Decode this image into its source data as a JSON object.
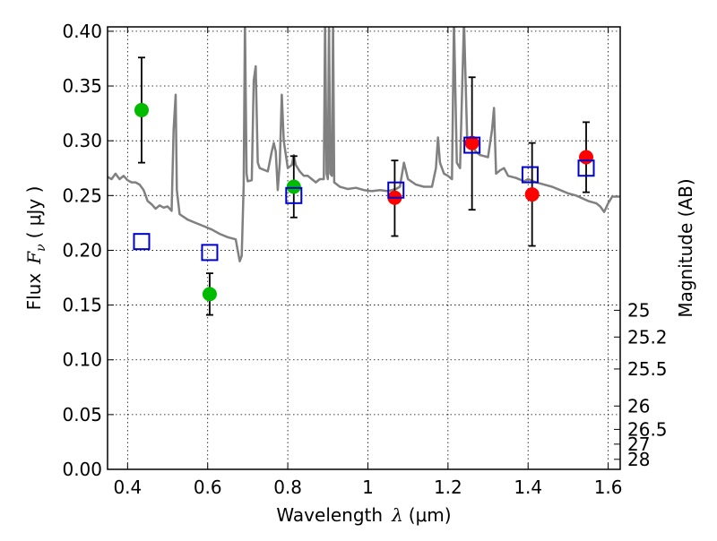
{
  "chart_data": {
    "type": "scatter",
    "title": "",
    "xlabel": "Wavelength",
    "xlabel_symbol": "λ",
    "xlabel_unit": "(μm)",
    "ylabel": "Flux",
    "ylabel_symbol": "F",
    "ylabel_symbol_sub": "ν",
    "ylabel_unit": "( μJy )",
    "ylabel_right": "Magnitude (AB)",
    "xlim": [
      0.35,
      1.63
    ],
    "ylim": [
      0.0,
      0.404
    ],
    "grid": true,
    "x_ticks": [
      {
        "value": 0.4,
        "label": "0.4"
      },
      {
        "value": 0.6,
        "label": "0.6"
      },
      {
        "value": 0.8,
        "label": "0.8"
      },
      {
        "value": 1.0,
        "label": "1"
      },
      {
        "value": 1.2,
        "label": "1.2"
      },
      {
        "value": 1.4,
        "label": "1.4"
      },
      {
        "value": 1.6,
        "label": "1.6"
      }
    ],
    "y_ticks": [
      {
        "value": 0.0,
        "label": "0.00"
      },
      {
        "value": 0.05,
        "label": "0.05"
      },
      {
        "value": 0.1,
        "label": "0.10"
      },
      {
        "value": 0.15,
        "label": "0.15"
      },
      {
        "value": 0.2,
        "label": "0.20"
      },
      {
        "value": 0.25,
        "label": "0.25"
      },
      {
        "value": 0.3,
        "label": "0.30"
      },
      {
        "value": 0.35,
        "label": "0.35"
      },
      {
        "value": 0.4,
        "label": "0.40"
      }
    ],
    "y_right_ticks": [
      {
        "value": 25,
        "label": "25"
      },
      {
        "value": 25.2,
        "label": "25.2"
      },
      {
        "value": 25.5,
        "label": "25.5"
      },
      {
        "value": 26,
        "label": "26"
      },
      {
        "value": 26.5,
        "label": "26.5"
      },
      {
        "value": 27,
        "label": "27"
      },
      {
        "value": 28,
        "label": "28"
      }
    ],
    "colors": {
      "model": "#808080",
      "optical": "#00bb00",
      "nir": "#ff0000",
      "model_box": "#0000cc",
      "errorbar": "#000000"
    },
    "series": [
      {
        "kind": "line",
        "points": [
          [
            0.35,
            0.267
          ],
          [
            0.36,
            0.265
          ],
          [
            0.37,
            0.27
          ],
          [
            0.38,
            0.265
          ],
          [
            0.39,
            0.268
          ],
          [
            0.4,
            0.264
          ],
          [
            0.41,
            0.262
          ],
          [
            0.42,
            0.262
          ],
          [
            0.43,
            0.26
          ],
          [
            0.44,
            0.255
          ],
          [
            0.445,
            0.25
          ],
          [
            0.45,
            0.245
          ],
          [
            0.46,
            0.242
          ],
          [
            0.47,
            0.238
          ],
          [
            0.48,
            0.241
          ],
          [
            0.49,
            0.239
          ],
          [
            0.5,
            0.24
          ],
          [
            0.51,
            0.236
          ],
          [
            0.515,
            0.31
          ],
          [
            0.52,
            0.342
          ],
          [
            0.523,
            0.255
          ],
          [
            0.53,
            0.233
          ],
          [
            0.55,
            0.228
          ],
          [
            0.57,
            0.225
          ],
          [
            0.59,
            0.222
          ],
          [
            0.61,
            0.219
          ],
          [
            0.63,
            0.215
          ],
          [
            0.65,
            0.212
          ],
          [
            0.67,
            0.21
          ],
          [
            0.675,
            0.2
          ],
          [
            0.68,
            0.19
          ],
          [
            0.685,
            0.195
          ],
          [
            0.69,
            0.26
          ],
          [
            0.693,
            0.41
          ],
          [
            0.697,
            0.27
          ],
          [
            0.7,
            0.263
          ],
          [
            0.71,
            0.264
          ],
          [
            0.715,
            0.355
          ],
          [
            0.72,
            0.368
          ],
          [
            0.725,
            0.28
          ],
          [
            0.73,
            0.275
          ],
          [
            0.75,
            0.272
          ],
          [
            0.76,
            0.29
          ],
          [
            0.765,
            0.298
          ],
          [
            0.77,
            0.29
          ],
          [
            0.775,
            0.255
          ],
          [
            0.78,
            0.28
          ],
          [
            0.785,
            0.342
          ],
          [
            0.79,
            0.3
          ],
          [
            0.8,
            0.275
          ],
          [
            0.81,
            0.278
          ],
          [
            0.815,
            0.287
          ],
          [
            0.82,
            0.278
          ],
          [
            0.83,
            0.272
          ],
          [
            0.84,
            0.268
          ],
          [
            0.85,
            0.268
          ],
          [
            0.86,
            0.265
          ],
          [
            0.87,
            0.262
          ],
          [
            0.88,
            0.265
          ],
          [
            0.89,
            0.265
          ],
          [
            0.893,
            0.41
          ],
          [
            0.897,
            0.27
          ],
          [
            0.9,
            0.265
          ],
          [
            0.903,
            0.41
          ],
          [
            0.906,
            0.27
          ],
          [
            0.91,
            0.268
          ],
          [
            0.913,
            0.41
          ],
          [
            0.916,
            0.262
          ],
          [
            0.93,
            0.258
          ],
          [
            0.95,
            0.256
          ],
          [
            0.97,
            0.257
          ],
          [
            0.99,
            0.255
          ],
          [
            1.01,
            0.254
          ],
          [
            1.03,
            0.255
          ],
          [
            1.05,
            0.254
          ],
          [
            1.07,
            0.256
          ],
          [
            1.08,
            0.258
          ],
          [
            1.09,
            0.28
          ],
          [
            1.1,
            0.265
          ],
          [
            1.12,
            0.26
          ],
          [
            1.14,
            0.258
          ],
          [
            1.16,
            0.258
          ],
          [
            1.17,
            0.275
          ],
          [
            1.175,
            0.303
          ],
          [
            1.18,
            0.28
          ],
          [
            1.19,
            0.27
          ],
          [
            1.2,
            0.268
          ],
          [
            1.21,
            0.265
          ],
          [
            1.215,
            0.41
          ],
          [
            1.222,
            0.28
          ],
          [
            1.23,
            0.275
          ],
          [
            1.24,
            0.41
          ],
          [
            1.248,
            0.3
          ],
          [
            1.26,
            0.295
          ],
          [
            1.27,
            0.29
          ],
          [
            1.28,
            0.287
          ],
          [
            1.3,
            0.285
          ],
          [
            1.31,
            0.31
          ],
          [
            1.315,
            0.33
          ],
          [
            1.32,
            0.27
          ],
          [
            1.33,
            0.273
          ],
          [
            1.34,
            0.275
          ],
          [
            1.35,
            0.268
          ],
          [
            1.37,
            0.266
          ],
          [
            1.39,
            0.263
          ],
          [
            1.4,
            0.265
          ],
          [
            1.42,
            0.262
          ],
          [
            1.44,
            0.26
          ],
          [
            1.46,
            0.258
          ],
          [
            1.48,
            0.255
          ],
          [
            1.5,
            0.252
          ],
          [
            1.52,
            0.25
          ],
          [
            1.55,
            0.245
          ],
          [
            1.57,
            0.243
          ],
          [
            1.58,
            0.24
          ],
          [
            1.59,
            0.235
          ],
          [
            1.6,
            0.243
          ],
          [
            1.61,
            0.249
          ],
          [
            1.63,
            0.249
          ]
        ]
      },
      {
        "kind": "points",
        "marker": "circle",
        "color_key": "optical",
        "points": [
          {
            "x": 0.435,
            "y": 0.328,
            "yerr_low": 0.28,
            "yerr_high": 0.376
          },
          {
            "x": 0.605,
            "y": 0.16,
            "yerr_low": 0.141,
            "yerr_high": 0.179
          },
          {
            "x": 0.815,
            "y": 0.258,
            "yerr_low": 0.23,
            "yerr_high": 0.286
          }
        ]
      },
      {
        "kind": "points",
        "marker": "circle",
        "color_key": "nir",
        "points": [
          {
            "x": 1.067,
            "y": 0.248,
            "yerr_low": 0.213,
            "yerr_high": 0.282
          },
          {
            "x": 1.26,
            "y": 0.298,
            "yerr_low": 0.237,
            "yerr_high": 0.358
          },
          {
            "x": 1.41,
            "y": 0.251,
            "yerr_low": 0.204,
            "yerr_high": 0.298
          },
          {
            "x": 1.545,
            "y": 0.285,
            "yerr_low": 0.253,
            "yerr_high": 0.317
          }
        ]
      },
      {
        "kind": "points",
        "marker": "square",
        "color_key": "model_box",
        "points": [
          {
            "x": 0.435,
            "y": 0.208
          },
          {
            "x": 0.605,
            "y": 0.198
          },
          {
            "x": 0.815,
            "y": 0.25
          },
          {
            "x": 1.07,
            "y": 0.255
          },
          {
            "x": 1.26,
            "y": 0.296
          },
          {
            "x": 1.405,
            "y": 0.269
          },
          {
            "x": 1.545,
            "y": 0.275
          }
        ]
      }
    ]
  }
}
